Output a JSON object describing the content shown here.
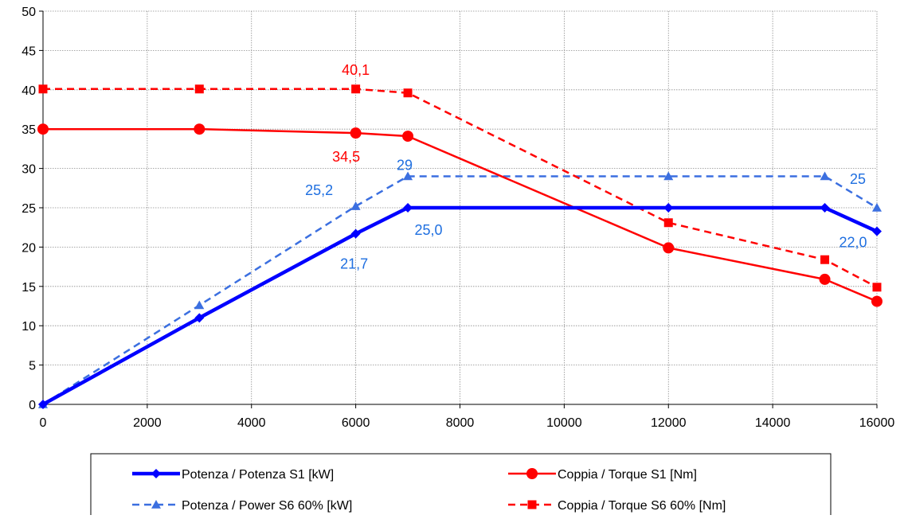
{
  "chart_data": {
    "type": "line",
    "title": "",
    "xlabel": "",
    "ylabel": "",
    "xlim": [
      0,
      16000
    ],
    "ylim": [
      0,
      50
    ],
    "x_ticks": [
      0,
      2000,
      4000,
      6000,
      8000,
      10000,
      12000,
      14000,
      16000
    ],
    "y_ticks": [
      0,
      5,
      10,
      15,
      20,
      25,
      30,
      35,
      40,
      45,
      50
    ],
    "grid": true,
    "legend_position": "bottom",
    "series": [
      {
        "name": "Potenza / Potenza S1 [kW]",
        "color": "#0000ff",
        "line_style": "solid",
        "marker": "diamond",
        "x": [
          0,
          3000,
          6000,
          7000,
          12000,
          15000,
          16000
        ],
        "y": [
          0,
          11,
          21.7,
          25,
          25,
          25,
          22
        ]
      },
      {
        "name": "Coppia / Torque S1 [Nm]",
        "color": "#ff0000",
        "line_style": "solid",
        "marker": "circle",
        "x": [
          0,
          3000,
          6000,
          7000,
          12000,
          15000,
          16000
        ],
        "y": [
          35,
          35,
          34.5,
          34.1,
          19.9,
          15.9,
          13.1
        ]
      },
      {
        "name": "Potenza / Power S6 60% [kW]",
        "color": "#3b6fe0",
        "line_style": "dashed",
        "marker": "triangle",
        "x": [
          0,
          3000,
          6000,
          7000,
          12000,
          15000,
          16000
        ],
        "y": [
          0,
          12.6,
          25.2,
          29,
          29,
          29,
          25
        ]
      },
      {
        "name": "Coppia / Torque S6 60% [Nm]",
        "color": "#ff0000",
        "line_style": "dashed",
        "marker": "square",
        "x": [
          0,
          3000,
          6000,
          7000,
          12000,
          15000,
          16000
        ],
        "y": [
          40.1,
          40.1,
          40.1,
          39.6,
          23.1,
          18.4,
          14.9
        ]
      }
    ],
    "annotations": [
      {
        "text": "40,1",
        "x": 6000,
        "y": 40.1,
        "color": "#ff0000"
      },
      {
        "text": "34,5",
        "x": 6000,
        "y": 34.5,
        "color": "#ff0000"
      },
      {
        "text": "29",
        "x": 7000,
        "y": 29,
        "color": "#1f6fe0"
      },
      {
        "text": "25,2",
        "x": 6000,
        "y": 25.2,
        "color": "#1f6fe0"
      },
      {
        "text": "25,0",
        "x": 7000,
        "y": 25,
        "color": "#1f6fe0"
      },
      {
        "text": "21,7",
        "x": 6000,
        "y": 21.7,
        "color": "#1f6fe0"
      },
      {
        "text": "25",
        "x": 16000,
        "y": 25,
        "color": "#1f6fe0"
      },
      {
        "text": "22,0",
        "x": 16000,
        "y": 22,
        "color": "#1f6fe0"
      }
    ]
  }
}
